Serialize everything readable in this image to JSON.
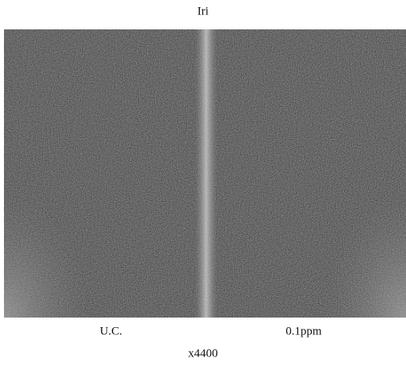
{
  "title": "Iri",
  "panels": [
    {
      "label": "U.C."
    },
    {
      "label": "0.1ppm"
    }
  ],
  "magnification": "x4400"
}
